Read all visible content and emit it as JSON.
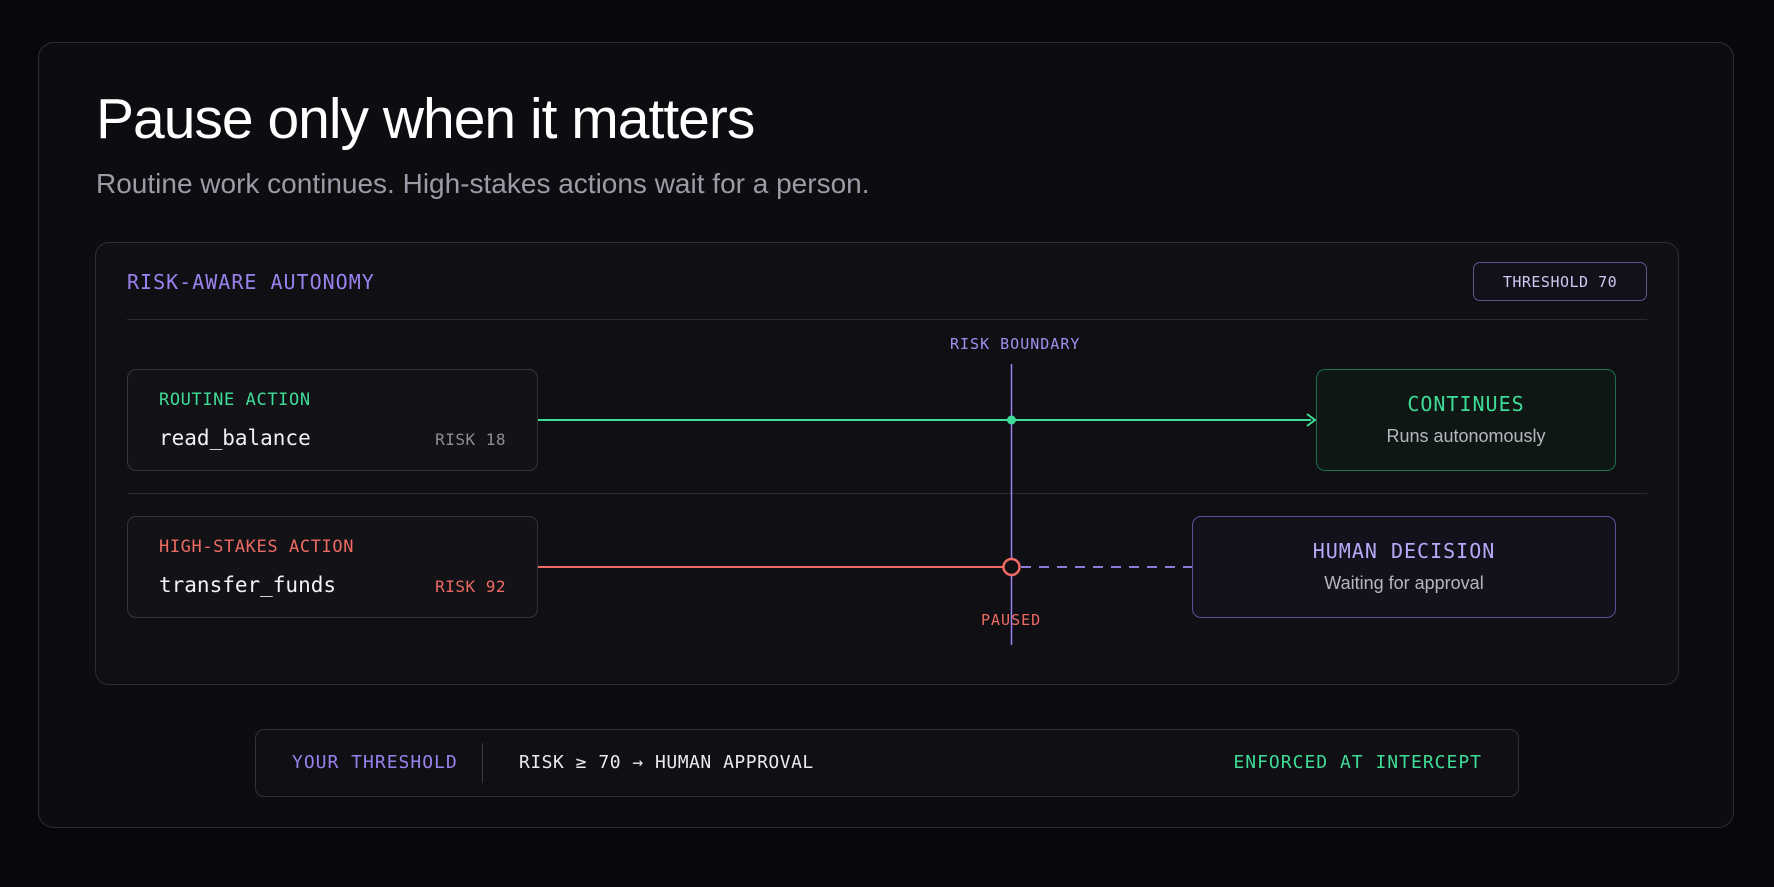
{
  "header": {
    "title": "Pause only when it matters",
    "subtitle": "Routine work continues. High-stakes actions wait for a person."
  },
  "panel": {
    "label": "RISK-AWARE AUTONOMY",
    "threshold_badge": "THRESHOLD 70",
    "boundary_label": "RISK BOUNDARY",
    "paused_label": "PAUSED"
  },
  "actions": [
    {
      "kind": "ROUTINE ACTION",
      "function": "read_balance",
      "risk": "RISK 18",
      "result_title": "CONTINUES",
      "result_sub": "Runs autonomously"
    },
    {
      "kind": "HIGH-STAKES ACTION",
      "function": "transfer_funds",
      "risk": "RISK 92",
      "result_title": "HUMAN DECISION",
      "result_sub": "Waiting for approval"
    }
  ],
  "footer": {
    "label": "YOUR THRESHOLD",
    "rule": "RISK ≥ 70 → HUMAN APPROVAL",
    "enforced": "ENFORCED AT INTERCEPT"
  },
  "colors": {
    "routine": "#3fdc97",
    "high_stakes": "#ee6a62",
    "boundary": "#9a82ee",
    "human": "#b9a8f7"
  }
}
